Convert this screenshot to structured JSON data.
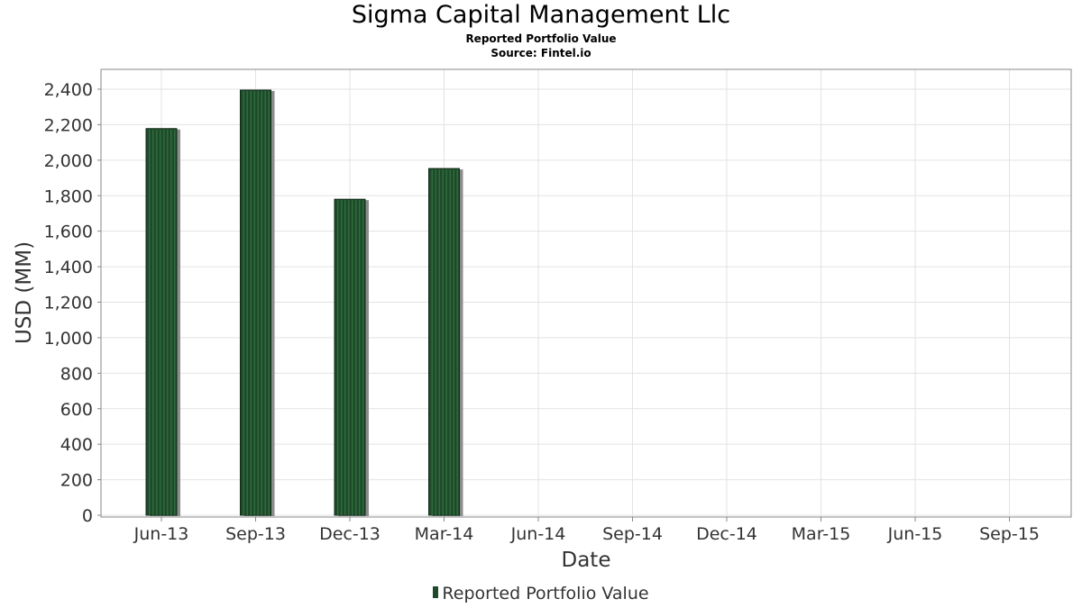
{
  "header": {
    "title": "Sigma Capital Management Llc",
    "subtitle": "Reported Portfolio Value",
    "source": "Source: Fintel.io"
  },
  "legend": {
    "label": "Reported Portfolio Value"
  },
  "colors": {
    "bar": "#1e4a2a",
    "bar_highlight": "#2f6b3d",
    "bar_shadow": "#8c8c8c",
    "grid": "#e3e3e3",
    "axis": "#888888",
    "text": "#333333"
  },
  "chart_data": {
    "type": "bar",
    "xlabel": "Date",
    "ylabel": "USD (MM)",
    "categories": [
      "Jun-13",
      "Sep-13",
      "Dec-13",
      "Mar-14",
      "Jun-14",
      "Sep-14",
      "Dec-14",
      "Mar-15",
      "Jun-15",
      "Sep-15"
    ],
    "series": [
      {
        "name": "Reported Portfolio Value",
        "values": [
          2178,
          2395,
          1780,
          1953,
          null,
          null,
          null,
          null,
          null,
          null
        ]
      }
    ],
    "ylim": [
      0,
      2500
    ],
    "yticks": [
      0,
      200,
      400,
      600,
      800,
      1000,
      1200,
      1400,
      1600,
      1800,
      2000,
      2200,
      2400
    ],
    "ytick_labels": [
      "0",
      "200",
      "400",
      "600",
      "800",
      "1,000",
      "1,200",
      "1,400",
      "1,600",
      "1,800",
      "2,000",
      "2,200",
      "2,400"
    ],
    "grid": true,
    "legend_position": "bottom"
  }
}
